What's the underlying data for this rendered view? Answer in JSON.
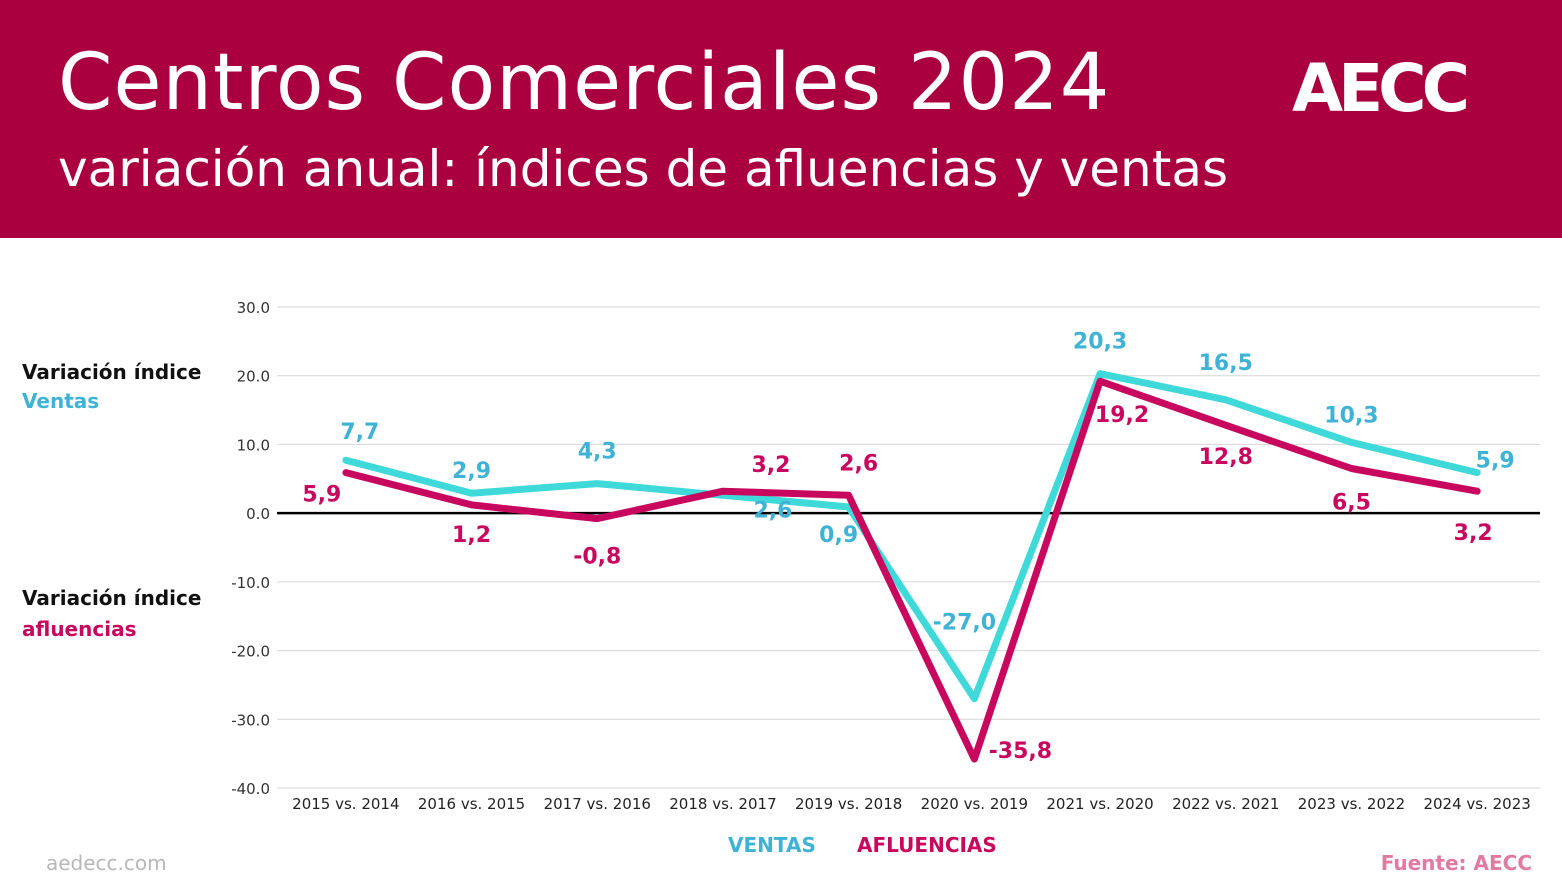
{
  "header": {
    "title": "Centros Comerciales 2024",
    "subtitle": "variación anual: índices de afluencias y ventas",
    "logo_text": "AECC",
    "background": "#ab0040"
  },
  "side_labels": {
    "ventas_line1": "Variación índice",
    "ventas_line2": "Ventas",
    "afluencias_line1": "Variación índice",
    "afluencias_line2": "afluencias"
  },
  "legend": {
    "ventas": "VENTAS",
    "afluencias": "AFLUENCIAS"
  },
  "footer": {
    "website": "aedecc.com",
    "source": "Fuente: AECC"
  },
  "colors": {
    "ventas": "#40d9d9",
    "afluencias": "#c8085e",
    "ventas_label": "#3fb3d6",
    "afluencias_label": "#c8085e",
    "source": "#e07aa0"
  },
  "chart_data": {
    "type": "line",
    "categories": [
      "2015 vs. 2014",
      "2016 vs. 2015",
      "2017 vs. 2016",
      "2018 vs. 2017",
      "2019 vs. 2018",
      "2020 vs. 2019",
      "2021 vs. 2020",
      "2022 vs. 2021",
      "2023 vs. 2022",
      "2024 vs. 2023"
    ],
    "series": [
      {
        "name": "VENTAS",
        "values": [
          7.7,
          2.9,
          4.3,
          2.6,
          0.9,
          -27.0,
          20.3,
          16.5,
          10.3,
          5.9
        ],
        "labels": [
          "7,7",
          "2,9",
          "4,3",
          "2,6",
          "0,9",
          "-27,0",
          "20,3",
          "16,5",
          "10,3",
          "5,9"
        ]
      },
      {
        "name": "AFLUENCIAS",
        "values": [
          5.9,
          1.2,
          -0.8,
          3.2,
          2.6,
          -35.8,
          19.2,
          12.8,
          6.5,
          3.2
        ],
        "labels": [
          "5,9",
          "1,2",
          "-0,8",
          "3,2",
          "2,6",
          "-35,8",
          "19,2",
          "12,8",
          "6,5",
          "3,2"
        ]
      }
    ],
    "y_ticks": [
      "30.0",
      "20.0",
      "10.0",
      "0.0",
      "-10.0",
      "-20.0",
      "-30.0",
      "-40.0"
    ],
    "ylim": [
      -40,
      30
    ],
    "grid": true,
    "legend_position": "bottom-center"
  }
}
